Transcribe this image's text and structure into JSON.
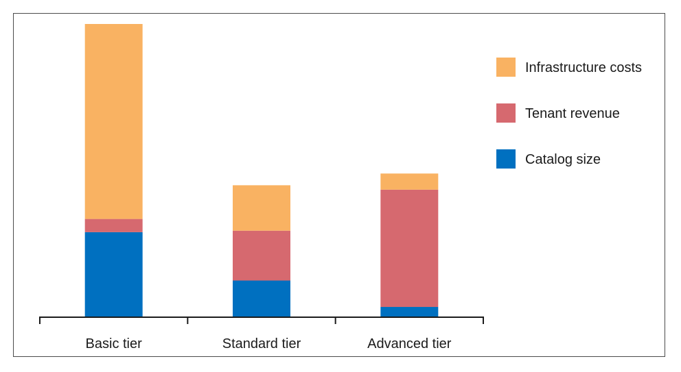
{
  "chart_data": {
    "type": "bar",
    "stacked": true,
    "categories": [
      "Basic tier",
      "Standard tier",
      "Advanced tier"
    ],
    "series": [
      {
        "name": "Catalog size",
        "color": "#0070c0",
        "values": [
          0.29,
          0.125,
          0.035
        ]
      },
      {
        "name": "Tenant revenue",
        "color": "#d6696f",
        "values": [
          0.045,
          0.17,
          0.4
        ]
      },
      {
        "name": "Infrastructure costs",
        "color": "#f9b262",
        "values": [
          0.665,
          0.155,
          0.055
        ]
      }
    ],
    "legend_order": [
      "Infrastructure costs",
      "Tenant revenue",
      "Catalog size"
    ],
    "legend_position": "right",
    "ylim": [
      0,
      1
    ],
    "y_axis_visible": false,
    "grid": false,
    "title": "",
    "xlabel": "",
    "ylabel": ""
  }
}
